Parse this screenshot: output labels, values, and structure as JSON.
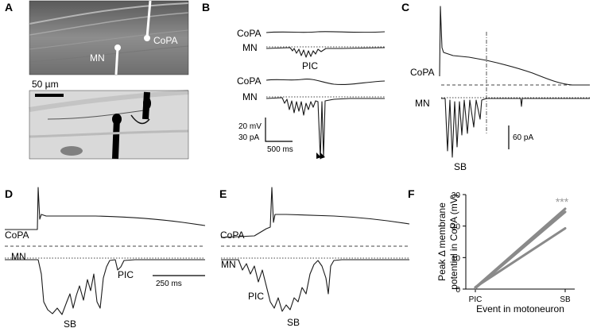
{
  "panels": {
    "A": {
      "label": "A",
      "copa": "CoPA",
      "mn": "MN",
      "scale": "50 µm"
    },
    "B": {
      "label": "B",
      "copa1": "CoPA",
      "mn1": "MN",
      "pic": "PIC",
      "copa2": "CoPA",
      "mn2": "MN",
      "scale_mv": "20 mV",
      "scale_pa": "30 pA",
      "scale_ms": "500 ms"
    },
    "C": {
      "label": "C",
      "copa": "CoPA",
      "mn": "MN",
      "sb": "SB",
      "scale_pa": "60 pA"
    },
    "D": {
      "label": "D",
      "copa": "CoPA",
      "mn": "MN",
      "sb": "SB",
      "pic": "PIC",
      "scale_ms": "250 ms"
    },
    "E": {
      "label": "E",
      "copa": "CoPA",
      "mn": "MN",
      "pic": "PIC",
      "sb": "SB"
    },
    "F": {
      "label": "F",
      "significance": "***"
    }
  },
  "chart_data": {
    "type": "line",
    "categories": [
      "PIC",
      "SB"
    ],
    "xlabel": "Event in motoneuron",
    "ylabel": "Peak Δ membrane potential in CoPA (mV)",
    "ylim": [
      0,
      30
    ],
    "yticks": [
      0,
      10,
      20,
      30
    ],
    "series": [
      {
        "values": [
          0.5,
          25.5
        ]
      },
      {
        "values": [
          0.3,
          24.5
        ]
      },
      {
        "values": [
          0.6,
          19.3
        ]
      }
    ],
    "line_color": "#8a8a8a",
    "significance": "***"
  }
}
